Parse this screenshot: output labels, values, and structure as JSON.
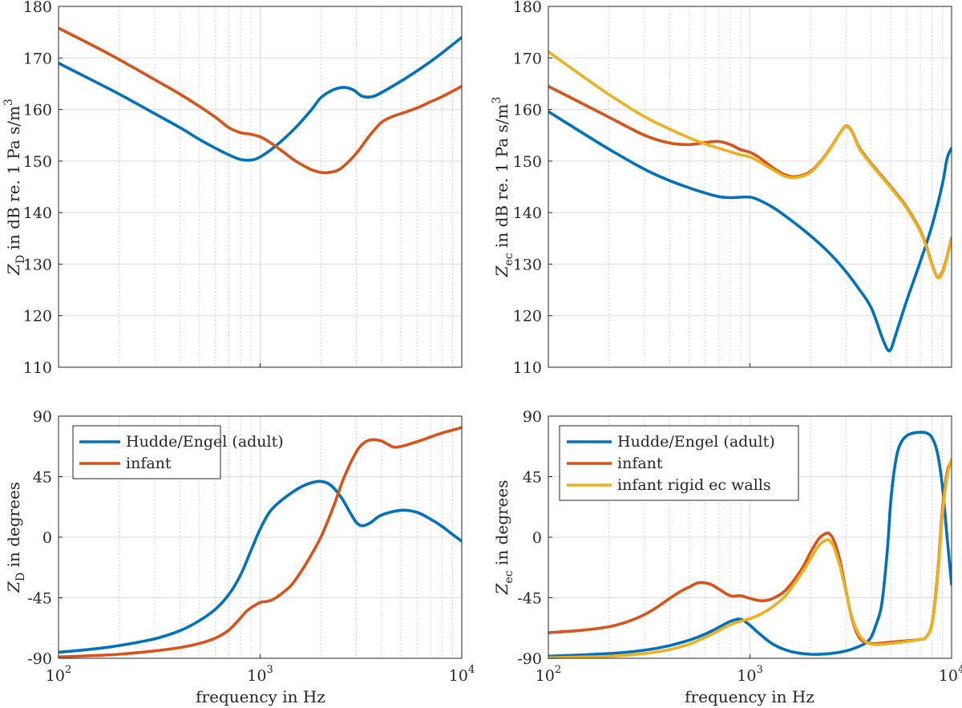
{
  "chart_data": [
    {
      "id": "top-left",
      "type": "line",
      "xscale": "log",
      "xlim": [
        100,
        10000
      ],
      "ylim": [
        110,
        180
      ],
      "yticks": [
        110,
        120,
        130,
        140,
        150,
        160,
        170,
        180
      ],
      "ylabel_main": "Z",
      "ylabel_sub": "D",
      "ylabel_rest": " in dB re. 1 Pa s/m",
      "ylabel_sup": "3",
      "xlabel": "",
      "series": [
        {
          "name": "Hudde/Engel (adult)",
          "color": "#0072BD",
          "x": [
            100,
            150,
            200,
            300,
            400,
            500,
            600,
            700,
            800,
            900,
            1000,
            1200,
            1500,
            1800,
            2000,
            2300,
            2600,
            2900,
            3200,
            3600,
            4000,
            5000,
            6000,
            7000,
            8000,
            10000
          ],
          "y": [
            169,
            165.5,
            163,
            159.2,
            156.5,
            154.2,
            152.5,
            151.2,
            150.3,
            150.2,
            150.8,
            153,
            156.5,
            160,
            162.3,
            163.8,
            164.3,
            163.8,
            162.6,
            162.5,
            163.3,
            165.5,
            167.5,
            169.3,
            171,
            174
          ]
        },
        {
          "name": "infant",
          "color": "#D95319",
          "x": [
            100,
            150,
            200,
            300,
            400,
            500,
            600,
            700,
            800,
            900,
            1000,
            1100,
            1300,
            1500,
            1800,
            2000,
            2200,
            2500,
            3000,
            3500,
            4000,
            4500,
            5000,
            6000,
            7000,
            8000,
            10000
          ],
          "y": [
            175.8,
            172.3,
            169.7,
            165.8,
            163,
            160.6,
            158.5,
            156.5,
            155.5,
            155.2,
            154.7,
            153.8,
            151.8,
            150,
            148.3,
            147.8,
            147.8,
            148.5,
            151.5,
            155,
            157.5,
            158.6,
            159.2,
            160.3,
            161.5,
            162.5,
            164.5
          ]
        }
      ]
    },
    {
      "id": "top-right",
      "type": "line",
      "xscale": "log",
      "xlim": [
        100,
        10000
      ],
      "ylim": [
        110,
        180
      ],
      "yticks": [
        110,
        120,
        130,
        140,
        150,
        160,
        170,
        180
      ],
      "ylabel_main": "Z",
      "ylabel_sub": "ec",
      "ylabel_rest": " in dB re. 1 Pa s/m",
      "ylabel_sup": "3",
      "xlabel": "",
      "series": [
        {
          "name": "Hudde/Engel (adult)",
          "color": "#0072BD",
          "x": [
            100,
            150,
            200,
            300,
            400,
            500,
            600,
            700,
            800,
            900,
            1000,
            1100,
            1300,
            1600,
            2000,
            2500,
            3000,
            3500,
            4000,
            4500,
            4800,
            5000,
            5300,
            6000,
            7000,
            8000,
            9000,
            9500,
            10000
          ],
          "y": [
            159.6,
            155.3,
            152.3,
            148.4,
            146.2,
            144.8,
            143.8,
            143.1,
            142.9,
            143,
            143,
            142.5,
            141,
            138.5,
            135.5,
            132,
            128.5,
            125,
            121.5,
            116,
            113.5,
            113.5,
            116.5,
            123,
            130.5,
            137.5,
            145.5,
            150.5,
            152.5
          ]
        },
        {
          "name": "infant",
          "color": "#D95319",
          "x": [
            100,
            150,
            200,
            300,
            400,
            500,
            600,
            700,
            800,
            900,
            1000,
            1100,
            1300,
            1500,
            1700,
            2000,
            2300,
            2600,
            2800,
            3000,
            3200,
            3500,
            4000,
            5000,
            6000,
            7000,
            7500,
            8000,
            8500,
            9000,
            9500,
            10000
          ],
          "y": [
            164.5,
            161,
            158.5,
            155,
            153.5,
            153.2,
            153.6,
            153.8,
            153.2,
            152.2,
            151.7,
            150.8,
            148.7,
            147.3,
            147,
            148,
            150.5,
            153.5,
            155.5,
            156.8,
            155.8,
            152.5,
            149.5,
            145,
            141,
            136.5,
            133.5,
            130,
            127.5,
            128.5,
            131.5,
            135
          ]
        },
        {
          "name": "infant rigid ec walls",
          "color": "#EDB120",
          "x": [
            100,
            150,
            200,
            300,
            400,
            500,
            600,
            700,
            800,
            900,
            1000,
            1100,
            1300,
            1500,
            1700,
            2000,
            2300,
            2600,
            2800,
            3000,
            3200,
            3500,
            4000,
            5000,
            6000,
            7000,
            7500,
            8000,
            8500,
            9000,
            9500,
            10000
          ],
          "y": [
            171.2,
            166.3,
            162.9,
            158.6,
            156.2,
            154.5,
            153.3,
            152.5,
            151.8,
            151.2,
            150.8,
            150,
            148.3,
            147,
            146.8,
            147.8,
            150.4,
            153.4,
            155.5,
            156.7,
            155.7,
            152.3,
            149.3,
            144.8,
            140.8,
            136.3,
            133.3,
            129.8,
            127.4,
            128.2,
            131.3,
            134.8
          ]
        }
      ]
    },
    {
      "id": "bottom-left",
      "type": "line",
      "xscale": "log",
      "xlim": [
        100,
        10000
      ],
      "ylim": [
        -90,
        90
      ],
      "yticks": [
        -90,
        -45,
        0,
        45,
        90
      ],
      "ylabel_main": "Z",
      "ylabel_sub": "D",
      "ylabel_rest": " in degrees",
      "ylabel_sup": "",
      "xlabel": "frequency in Hz",
      "legend": "top-left",
      "series": [
        {
          "name": "Hudde/Engel (adult)",
          "color": "#0072BD",
          "x": [
            100,
            150,
            200,
            300,
            400,
            500,
            600,
            700,
            800,
            900,
            1000,
            1100,
            1200,
            1400,
            1600,
            1800,
            2000,
            2200,
            2400,
            2600,
            2800,
            3000,
            3200,
            3500,
            4000,
            5000,
            6000,
            7000,
            8000,
            9000,
            10000
          ],
          "y": [
            -85.5,
            -83,
            -80.5,
            -75.5,
            -69.5,
            -62,
            -53.5,
            -42.5,
            -28,
            -10,
            6,
            17.5,
            24,
            32,
            37.5,
            40.5,
            41.5,
            39.5,
            34,
            26.5,
            18,
            11,
            8.5,
            10.5,
            16.5,
            20,
            18.5,
            13.5,
            8,
            2,
            -3
          ]
        },
        {
          "name": "infant",
          "color": "#D95319",
          "x": [
            100,
            150,
            200,
            300,
            400,
            500,
            600,
            700,
            800,
            850,
            900,
            1000,
            1100,
            1200,
            1300,
            1400,
            1500,
            1700,
            2000,
            2300,
            2600,
            3000,
            3300,
            3600,
            4000,
            4300,
            4600,
            5000,
            6000,
            7000,
            8000,
            10000
          ],
          "y": [
            -89,
            -88,
            -87,
            -84.5,
            -82,
            -79,
            -75,
            -69,
            -60,
            -55.5,
            -52.5,
            -48.5,
            -47.5,
            -45,
            -41,
            -37,
            -31.5,
            -19,
            0,
            22,
            44,
            63.5,
            70.5,
            72.5,
            71.5,
            69,
            67,
            67.5,
            71,
            74.5,
            77.5,
            81.5
          ]
        }
      ]
    },
    {
      "id": "bottom-right",
      "type": "line",
      "xscale": "log",
      "xlim": [
        100,
        10000
      ],
      "ylim": [
        -90,
        90
      ],
      "yticks": [
        -90,
        -45,
        0,
        45,
        90
      ],
      "ylabel_main": "Z",
      "ylabel_sub": "ec",
      "ylabel_rest": " in degrees",
      "ylabel_sup": "",
      "xlabel": "frequency in Hz",
      "legend": "top-left",
      "series": [
        {
          "name": "Hudde/Engel (adult)",
          "color": "#0072BD",
          "x": [
            100,
            200,
            300,
            400,
            500,
            600,
            700,
            800,
            900,
            1000,
            1100,
            1300,
            1600,
            2000,
            2500,
            3000,
            3500,
            3800,
            4000,
            4200,
            4500,
            4800,
            5000,
            5300,
            5600,
            6000,
            6500,
            7000,
            7500,
            8000,
            8500,
            9000,
            9500,
            10000
          ],
          "y": [
            -88.5,
            -86.5,
            -84,
            -80.5,
            -76.5,
            -72,
            -67,
            -62.5,
            -61,
            -65.5,
            -71,
            -79.5,
            -85,
            -87,
            -86.5,
            -84.5,
            -81,
            -78,
            -74,
            -66,
            -50,
            -10,
            28,
            58,
            70,
            75.5,
            77.5,
            78,
            77.5,
            74,
            63,
            38,
            0,
            -35
          ]
        },
        {
          "name": "infant",
          "color": "#D95319",
          "x": [
            100,
            150,
            200,
            250,
            300,
            350,
            400,
            450,
            500,
            550,
            600,
            650,
            700,
            800,
            900,
            1000,
            1100,
            1200,
            1300,
            1500,
            1800,
            2000,
            2200,
            2400,
            2500,
            2600,
            2700,
            2800,
            3000,
            3200,
            3500,
            4000,
            5000,
            6000,
            7000,
            7500,
            8000,
            8500,
            9000,
            9500,
            10000
          ],
          "y": [
            -71,
            -69,
            -66.5,
            -62.5,
            -57.5,
            -51.5,
            -45.5,
            -40.5,
            -37,
            -34,
            -34,
            -35.5,
            -38.5,
            -43.5,
            -43.5,
            -45.5,
            -47,
            -47,
            -45.5,
            -39.5,
            -24,
            -11,
            -1,
            3,
            2,
            -2,
            -9,
            -18,
            -40,
            -60,
            -75,
            -79,
            -78,
            -77,
            -76,
            -74,
            -64,
            -30,
            20,
            48,
            57
          ]
        },
        {
          "name": "infant rigid ec walls",
          "color": "#EDB120",
          "x": [
            100,
            200,
            300,
            400,
            500,
            600,
            700,
            800,
            900,
            1000,
            1100,
            1200,
            1300,
            1500,
            1800,
            2000,
            2200,
            2400,
            2500,
            2600,
            2700,
            2800,
            3000,
            3200,
            3500,
            4000,
            5000,
            6000,
            7000,
            7500,
            8000,
            8500,
            9000,
            9500,
            10000
          ],
          "y": [
            -89.5,
            -88.5,
            -86.5,
            -83.5,
            -79.5,
            -74.5,
            -69.5,
            -65,
            -62.5,
            -60.5,
            -58,
            -55,
            -51.5,
            -43.5,
            -27,
            -16,
            -6,
            -2,
            -3,
            -7,
            -14,
            -22,
            -41,
            -59,
            -73,
            -79.5,
            -79,
            -77.5,
            -76,
            -74,
            -65,
            -33,
            16,
            45,
            58
          ]
        }
      ]
    }
  ]
}
